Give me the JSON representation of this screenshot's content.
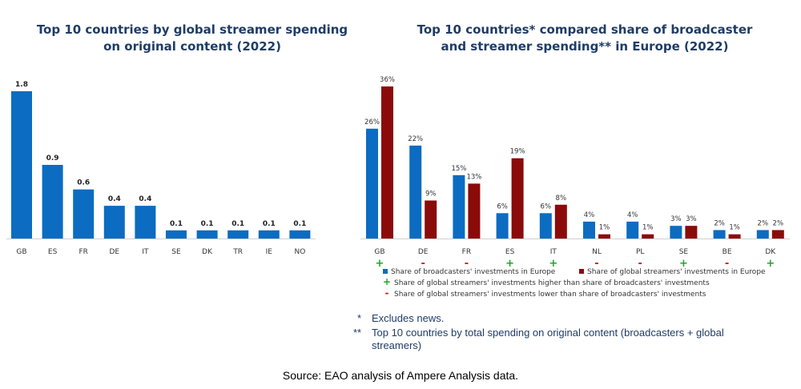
{
  "chart_data": [
    {
      "type": "bar",
      "title": "Top 10 countries by global streamer spending on original content (2022)",
      "categories": [
        "GB",
        "ES",
        "FR",
        "DE",
        "IT",
        "SE",
        "DK",
        "TR",
        "IE",
        "NO"
      ],
      "values": [
        1.8,
        0.9,
        0.6,
        0.4,
        0.4,
        0.1,
        0.1,
        0.1,
        0.1,
        0.1
      ],
      "value_labels": [
        "1.8",
        "0.9",
        "0.6",
        "0.4",
        "0.4",
        "0.1",
        "0.1",
        "0.1",
        "0.1",
        "0.1"
      ],
      "ylim": [
        0,
        1.8
      ],
      "color": "#0b6cc1",
      "grid": false
    },
    {
      "type": "bar",
      "title": "Top 10 countries* compared share of broadcaster and streamer spending** in Europe (2022)",
      "categories": [
        "GB",
        "DE",
        "FR",
        "ES",
        "IT",
        "NL",
        "PL",
        "SE",
        "BE",
        "DK"
      ],
      "series": [
        {
          "name": "Share of broadcasters' investments in Europe",
          "color": "#0b6cc1",
          "values": [
            26,
            22,
            15,
            6,
            6,
            4,
            4,
            3,
            2,
            2
          ]
        },
        {
          "name": "Share of global  streamers' investments in Europe",
          "color": "#8b0a0a",
          "values": [
            36,
            9,
            13,
            19,
            8,
            1,
            1,
            3,
            1,
            2
          ]
        }
      ],
      "signs": [
        "+",
        "-",
        "-",
        "+",
        "+",
        "-",
        "-",
        "+",
        "-",
        "+"
      ],
      "sign_legend": [
        {
          "symbol": "+",
          "color": "#22a52a",
          "text": "Share of global streamers' investments higher than share of broadcasters' investments"
        },
        {
          "symbol": "-",
          "color": "#d11a1a",
          "text": "Share of global streamers' investments lower than share of broadcasters' investments"
        }
      ],
      "ylim": [
        0,
        36
      ],
      "grid": false
    }
  ],
  "text": {
    "title_left": "Top 10 countries by global streamer spending on original content (2022)",
    "title_right": "Top 10 countries* compared share of broadcaster and streamer spending** in Europe (2022)",
    "note1_mark": "*",
    "note1_text": "Excludes news.",
    "note2_mark": "**",
    "note2_text": "Top 10 countries by total spending on original content (broadcasters + global streamers)",
    "source": "Source: EAO analysis of Ampere Analysis data."
  }
}
